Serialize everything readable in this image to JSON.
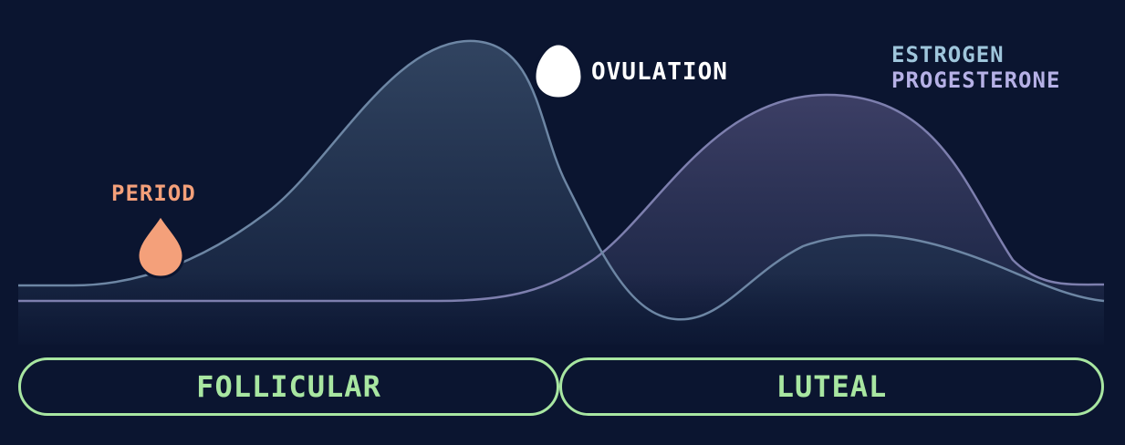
{
  "labels": {
    "period": "PERIOD",
    "ovulation": "OVULATION"
  },
  "legend": {
    "estrogen": "ESTROGEN",
    "progesterone": "PROGESTERONE"
  },
  "phases": {
    "follicular": "FOLLICULAR",
    "luteal": "LUTEAL"
  },
  "colors": {
    "background": "#0b1530",
    "period": "#f4a07a",
    "ovulation": "#ffffff",
    "estrogen": "#9fc6dc",
    "progesterone": "#b6b1e6",
    "phase_border": "#a8e6a1",
    "phase_text": "#a8e6a1",
    "estrogen_line": "#6d86a4",
    "progesterone_line": "#7d7fae"
  },
  "icons": {
    "period": "drop-icon",
    "ovulation": "egg-icon"
  }
}
